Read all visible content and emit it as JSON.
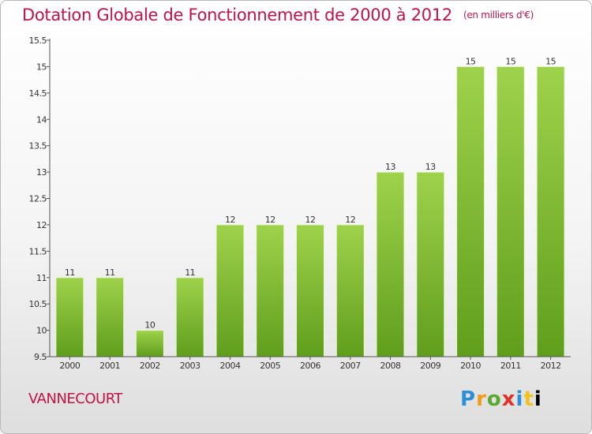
{
  "header": {
    "title": "Dotation Globale de Fonctionnement de 2000 à 2012",
    "subtitle": "(en milliers d'€)"
  },
  "footer": {
    "commune": "VANNECOURT",
    "brand": "Proxiti"
  },
  "colors": {
    "title": "#c0134a",
    "bar_light": "#9fd24c",
    "bar_dark": "#5f9e1c",
    "axis": "#555555"
  },
  "chart_data": {
    "type": "bar",
    "categories": [
      "2000",
      "2001",
      "2002",
      "2003",
      "2004",
      "2005",
      "2006",
      "2007",
      "2008",
      "2009",
      "2010",
      "2011",
      "2012"
    ],
    "values": [
      11,
      11,
      10,
      11,
      12,
      12,
      12,
      12,
      13,
      13,
      15,
      15,
      15
    ],
    "data_labels": [
      "11",
      "11",
      "10",
      "11",
      "12",
      "12",
      "12",
      "12",
      "13",
      "13",
      "15",
      "15",
      "15"
    ],
    "yticks": [
      "9.5",
      "10",
      "10.5",
      "11",
      "11.5",
      "12",
      "12.5",
      "13",
      "13.5",
      "14",
      "14.5",
      "15",
      "15.5"
    ],
    "ylim": [
      9.5,
      15.5
    ],
    "grid": false,
    "legend": "none"
  }
}
